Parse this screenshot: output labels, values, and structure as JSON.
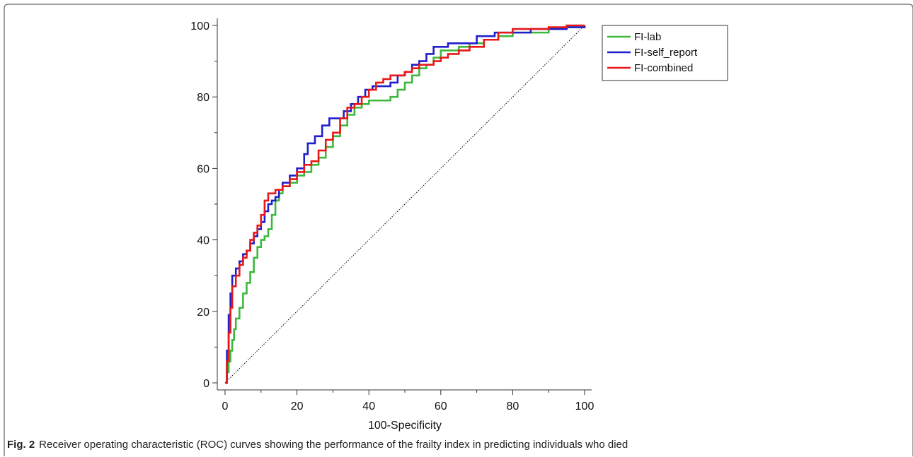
{
  "caption": {
    "label": "Fig. 2",
    "text": "Receiver operating characteristic (ROC) curves showing the performance of the frailty index in predicting individuals who died"
  },
  "chart_data": {
    "type": "line",
    "xlabel": "100-Specificity",
    "ylabel": "",
    "xlim": [
      0,
      100
    ],
    "ylim": [
      0,
      100
    ],
    "x_ticks": [
      0,
      20,
      40,
      60,
      80,
      100
    ],
    "y_ticks": [
      0,
      20,
      40,
      60,
      80,
      100
    ],
    "grid": false,
    "legend_position": "top-right",
    "reference_line": {
      "style": "dotted",
      "color": "#000000",
      "from": [
        0,
        0
      ],
      "to": [
        100,
        100
      ]
    },
    "series": [
      {
        "name": "FI-lab",
        "color": "#3cb93c",
        "points": [
          [
            0,
            0
          ],
          [
            0.5,
            3
          ],
          [
            1,
            6
          ],
          [
            1.5,
            9
          ],
          [
            2,
            12
          ],
          [
            2.5,
            15
          ],
          [
            3,
            18
          ],
          [
            4,
            21
          ],
          [
            5,
            25
          ],
          [
            6,
            28
          ],
          [
            7,
            31
          ],
          [
            8,
            35
          ],
          [
            9,
            38
          ],
          [
            10,
            40
          ],
          [
            11,
            41
          ],
          [
            12,
            43
          ],
          [
            13,
            47
          ],
          [
            14,
            51
          ],
          [
            15,
            53
          ],
          [
            16,
            55
          ],
          [
            18,
            56
          ],
          [
            20,
            58
          ],
          [
            22,
            59
          ],
          [
            24,
            61
          ],
          [
            26,
            63
          ],
          [
            28,
            66
          ],
          [
            30,
            69
          ],
          [
            32,
            72
          ],
          [
            34,
            75
          ],
          [
            36,
            77
          ],
          [
            38,
            78
          ],
          [
            40,
            79
          ],
          [
            44,
            79
          ],
          [
            46,
            80
          ],
          [
            48,
            82
          ],
          [
            50,
            84
          ],
          [
            52,
            86
          ],
          [
            54,
            88
          ],
          [
            56,
            89
          ],
          [
            58,
            91
          ],
          [
            60,
            93
          ],
          [
            62,
            93
          ],
          [
            65,
            94
          ],
          [
            68,
            95
          ],
          [
            72,
            96
          ],
          [
            76,
            97
          ],
          [
            80,
            98
          ],
          [
            85,
            98
          ],
          [
            90,
            99
          ],
          [
            95,
            99.5
          ],
          [
            100,
            100
          ]
        ]
      },
      {
        "name": "FI-self_report",
        "color": "#1f1fcc",
        "points": [
          [
            0,
            0
          ],
          [
            0.5,
            9
          ],
          [
            1,
            19
          ],
          [
            1.5,
            25
          ],
          [
            2,
            30
          ],
          [
            3,
            32
          ],
          [
            4,
            34
          ],
          [
            5,
            36
          ],
          [
            6,
            37
          ],
          [
            7,
            39
          ],
          [
            8,
            41
          ],
          [
            9,
            43
          ],
          [
            10,
            45
          ],
          [
            11,
            48
          ],
          [
            12,
            50
          ],
          [
            13,
            51
          ],
          [
            14,
            52
          ],
          [
            15,
            54
          ],
          [
            16,
            56
          ],
          [
            18,
            58
          ],
          [
            20,
            60
          ],
          [
            22,
            64
          ],
          [
            23,
            67
          ],
          [
            25,
            69
          ],
          [
            27,
            72
          ],
          [
            29,
            74
          ],
          [
            31,
            74
          ],
          [
            33,
            76
          ],
          [
            35,
            78
          ],
          [
            37,
            80
          ],
          [
            39,
            82
          ],
          [
            41,
            83
          ],
          [
            44,
            83
          ],
          [
            46,
            84
          ],
          [
            48,
            86
          ],
          [
            50,
            87
          ],
          [
            52,
            89
          ],
          [
            54,
            90
          ],
          [
            56,
            92
          ],
          [
            58,
            94
          ],
          [
            60,
            94
          ],
          [
            62,
            95
          ],
          [
            66,
            95
          ],
          [
            70,
            97
          ],
          [
            75,
            98
          ],
          [
            80,
            98
          ],
          [
            85,
            99
          ],
          [
            90,
            99
          ],
          [
            95,
            99.5
          ],
          [
            100,
            100
          ]
        ]
      },
      {
        "name": "FI-combined",
        "color": "#e81818",
        "points": [
          [
            0,
            0
          ],
          [
            0.5,
            6
          ],
          [
            1,
            14
          ],
          [
            1.5,
            21
          ],
          [
            2,
            27
          ],
          [
            3,
            30
          ],
          [
            4,
            33
          ],
          [
            5,
            35
          ],
          [
            6,
            37
          ],
          [
            7,
            40
          ],
          [
            8,
            42
          ],
          [
            9,
            44
          ],
          [
            10,
            47
          ],
          [
            11,
            51
          ],
          [
            12,
            53
          ],
          [
            14,
            54
          ],
          [
            16,
            55
          ],
          [
            18,
            57
          ],
          [
            20,
            59
          ],
          [
            22,
            61
          ],
          [
            24,
            62
          ],
          [
            26,
            65
          ],
          [
            28,
            68
          ],
          [
            30,
            70
          ],
          [
            32,
            74
          ],
          [
            34,
            77
          ],
          [
            36,
            78
          ],
          [
            38,
            80
          ],
          [
            40,
            82
          ],
          [
            42,
            84
          ],
          [
            44,
            85
          ],
          [
            46,
            86
          ],
          [
            50,
            87
          ],
          [
            52,
            88
          ],
          [
            54,
            89
          ],
          [
            56,
            89
          ],
          [
            58,
            90
          ],
          [
            60,
            91
          ],
          [
            62,
            92
          ],
          [
            65,
            93
          ],
          [
            68,
            94
          ],
          [
            72,
            96
          ],
          [
            76,
            98
          ],
          [
            80,
            99
          ],
          [
            85,
            99
          ],
          [
            90,
            99.5
          ],
          [
            95,
            100
          ],
          [
            100,
            100
          ]
        ]
      }
    ]
  }
}
